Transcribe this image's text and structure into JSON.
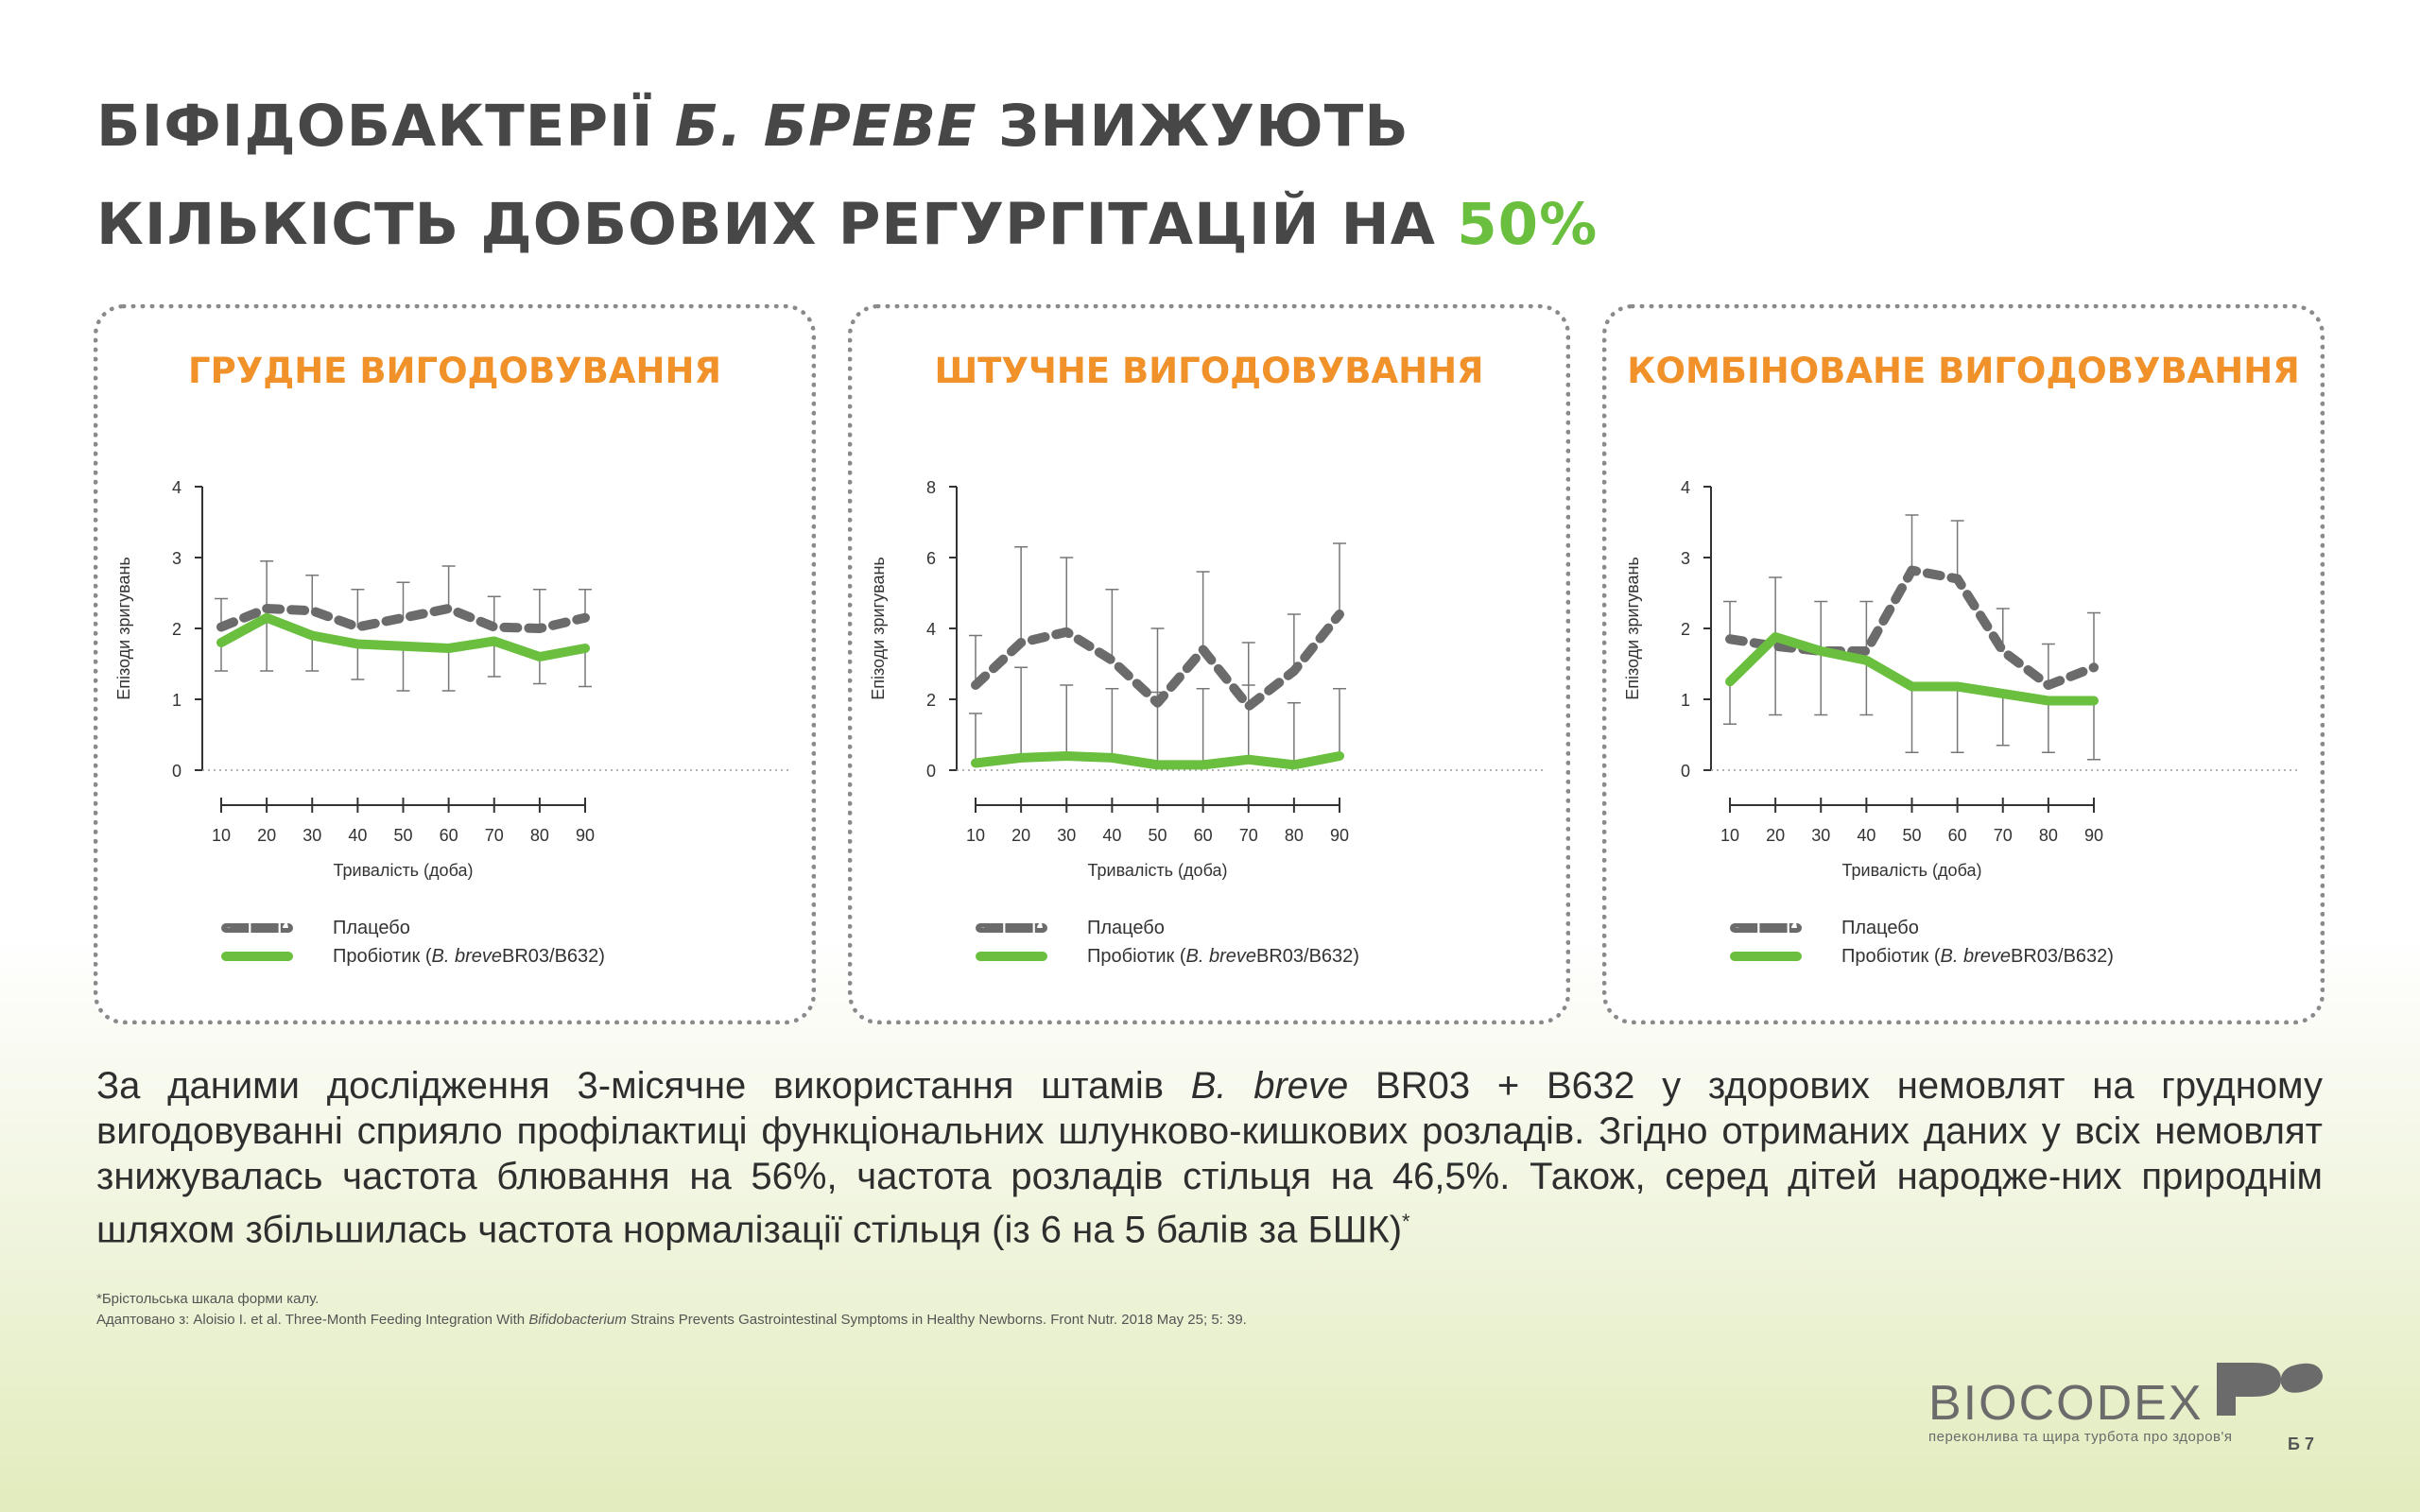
{
  "title": {
    "line1_pre": "БІФІДОБАКТЕРІЇ ",
    "line1_italic": "Б. БРЕВЕ",
    "line1_post": " ЗНИЖУЮТЬ",
    "line2_pre": "КІЛЬКІСТЬ ДОБОВИХ РЕГУРГІТАЦІЙ НА ",
    "line2_accent": "50%"
  },
  "colors": {
    "title": "#474747",
    "accent_green": "#6abf3f",
    "panel_title_orange": "#f0912a",
    "placebo_gray": "#6b6b6b",
    "probiotic_green": "#6abf3f"
  },
  "legend": {
    "placebo": "Плацебо",
    "probiotic_pre": "Пробіотик (",
    "probiotic_italic": "B. breve",
    "probiotic_post": " BR03/B632)"
  },
  "chart_data": [
    {
      "type": "line",
      "title": "ГРУДНЕ ВИГОДОВУВАННЯ",
      "xlabel": "Тривалість (доба)",
      "ylabel": "Епізоди зригувань",
      "x": [
        10,
        20,
        30,
        40,
        50,
        60,
        70,
        80,
        90
      ],
      "ylim": [
        0,
        4
      ],
      "yticks": [
        0,
        1,
        2,
        3,
        4
      ],
      "series": [
        {
          "name": "Плацебо",
          "style": "dashed",
          "color": "#6b6b6b",
          "values": [
            2.02,
            2.28,
            2.25,
            2.02,
            2.15,
            2.28,
            2.02,
            2.0,
            2.15
          ],
          "error_upper": [
            2.42,
            2.95,
            2.75,
            2.55,
            2.65,
            2.88,
            2.45,
            2.55,
            2.55
          ]
        },
        {
          "name": "Пробіотик (B. breve BR03/B632)",
          "style": "solid",
          "color": "#6abf3f",
          "values": [
            1.8,
            2.15,
            1.9,
            1.78,
            1.75,
            1.72,
            1.82,
            1.6,
            1.72
          ],
          "error_lower": [
            1.4,
            1.4,
            1.4,
            1.28,
            1.12,
            1.12,
            1.32,
            1.22,
            1.18
          ]
        }
      ]
    },
    {
      "type": "line",
      "title": "ШТУЧНЕ ВИГОДОВУВАННЯ",
      "xlabel": "Тривалість (доба)",
      "ylabel": "Епізоди зригувань",
      "x": [
        10,
        20,
        30,
        40,
        50,
        60,
        70,
        80,
        90
      ],
      "ylim": [
        0,
        8
      ],
      "yticks": [
        0,
        2,
        4,
        6,
        8
      ],
      "series": [
        {
          "name": "Плацебо",
          "style": "dashed",
          "color": "#6b6b6b",
          "values": [
            2.4,
            3.6,
            3.9,
            3.1,
            1.9,
            3.4,
            1.8,
            2.8,
            4.4
          ],
          "error_upper": [
            3.8,
            6.3,
            6.0,
            5.1,
            4.0,
            5.6,
            3.6,
            4.4,
            6.4
          ]
        },
        {
          "name": "Пробіотик (B. breve BR03/B632)",
          "style": "solid",
          "color": "#6abf3f",
          "values": [
            0.2,
            0.35,
            0.4,
            0.35,
            0.15,
            0.15,
            0.3,
            0.15,
            0.4
          ],
          "error_upper": [
            1.6,
            2.9,
            2.4,
            2.3,
            2.2,
            2.3,
            2.4,
            1.9,
            2.3
          ]
        }
      ]
    },
    {
      "type": "line",
      "title": "КОМБІНОВАНЕ ВИГОДОВУВАННЯ",
      "xlabel": "Тривалість (доба)",
      "ylabel": "Епізоди зригувань",
      "x": [
        10,
        20,
        30,
        40,
        50,
        60,
        70,
        80,
        90
      ],
      "ylim": [
        0,
        4
      ],
      "yticks": [
        0,
        1,
        2,
        3,
        4
      ],
      "series": [
        {
          "name": "Плацебо",
          "style": "dashed",
          "color": "#6b6b6b",
          "values": [
            1.85,
            1.75,
            1.68,
            1.68,
            2.82,
            2.7,
            1.68,
            1.2,
            1.45
          ],
          "error_upper": [
            2.38,
            2.72,
            2.38,
            2.38,
            3.6,
            3.52,
            2.28,
            1.78,
            2.22
          ]
        },
        {
          "name": "Пробіотик (B. breve BR03/B632)",
          "style": "solid",
          "color": "#6abf3f",
          "values": [
            1.25,
            1.88,
            1.68,
            1.55,
            1.18,
            1.18,
            1.08,
            0.98,
            0.98
          ],
          "error_lower": [
            0.65,
            0.78,
            0.78,
            0.78,
            0.25,
            0.25,
            0.35,
            0.25,
            0.15
          ]
        }
      ]
    }
  ],
  "body": {
    "p1": "За даними дослідження 3-місячне використання штамів ",
    "italic": "B. breve",
    "p2": " BR03 + B632 у здорових немовлят на грудному вигодовуванні сприяло профілактиці функціональних шлунково-кишкових розладів. Згідно отриманих даних у всіх немовлят знижувалась частота блювання на 56%, частота розладів стільця на 46,5%. Також, серед дітей народже-них природнім шляхом збільшилась частота нормалізації стільця (із 6 на 5 балів за БШК)",
    "sup": "*"
  },
  "footnotes": {
    "note1": "*Брістольська шкала форми калу.",
    "ref_pre": "Адаптовано з: Aloisio I. et al. Three-Month Feeding Integration With ",
    "ref_italic": "Bifidobacterium",
    "ref_post": " Strains Prevents Gastrointestinal Symptoms in Healthy Newborns. Front Nutr. 2018 May 25; 5: 39."
  },
  "logo": {
    "name": "BIOCODEX",
    "tagline": "переконлива та щира турбота про здоров'я"
  },
  "page_number": "Б 7"
}
